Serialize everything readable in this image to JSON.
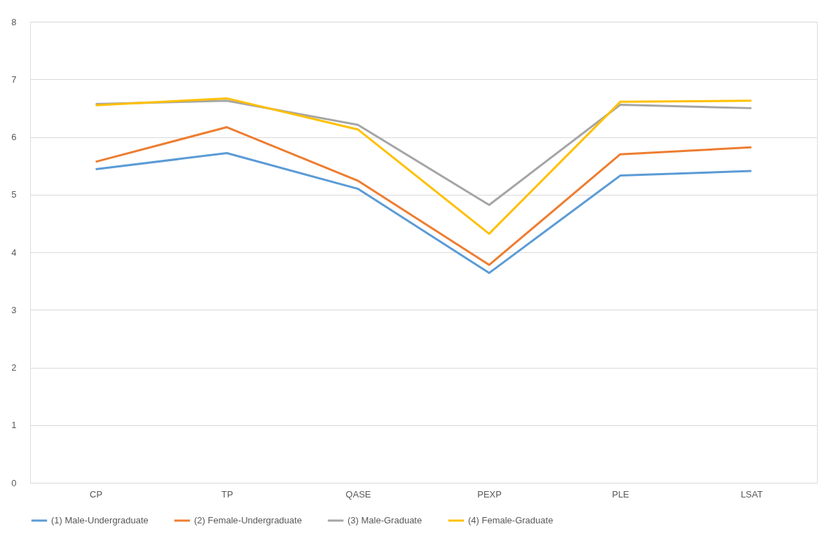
{
  "chart_data": {
    "type": "line",
    "categories": [
      "CP",
      "TP",
      "QASE",
      "PEXP",
      "PLE",
      "LSAT"
    ],
    "series": [
      {
        "name": "(1) Male-Undergraduate",
        "color": "#5b9bd5",
        "values": [
          5.44,
          5.72,
          5.1,
          3.64,
          5.33,
          5.41
        ]
      },
      {
        "name": "(2) Female-Undergraduate",
        "color": "#ed7d31",
        "values": [
          5.57,
          6.17,
          5.24,
          3.78,
          5.7,
          5.82
        ]
      },
      {
        "name": "(3) Male-Graduate",
        "color": "#a5a5a5",
        "values": [
          6.57,
          6.63,
          6.21,
          4.82,
          6.56,
          6.5
        ]
      },
      {
        "name": "(4) Female-Graduate",
        "color": "#ffc000",
        "values": [
          6.55,
          6.67,
          6.13,
          4.32,
          6.61,
          6.63
        ]
      }
    ],
    "ylim": [
      0,
      8
    ],
    "yticks": [
      0,
      1,
      2,
      3,
      4,
      5,
      6,
      7,
      8
    ],
    "grid": "y",
    "legend": "bottom",
    "marker": "none",
    "line_style": "solid"
  }
}
